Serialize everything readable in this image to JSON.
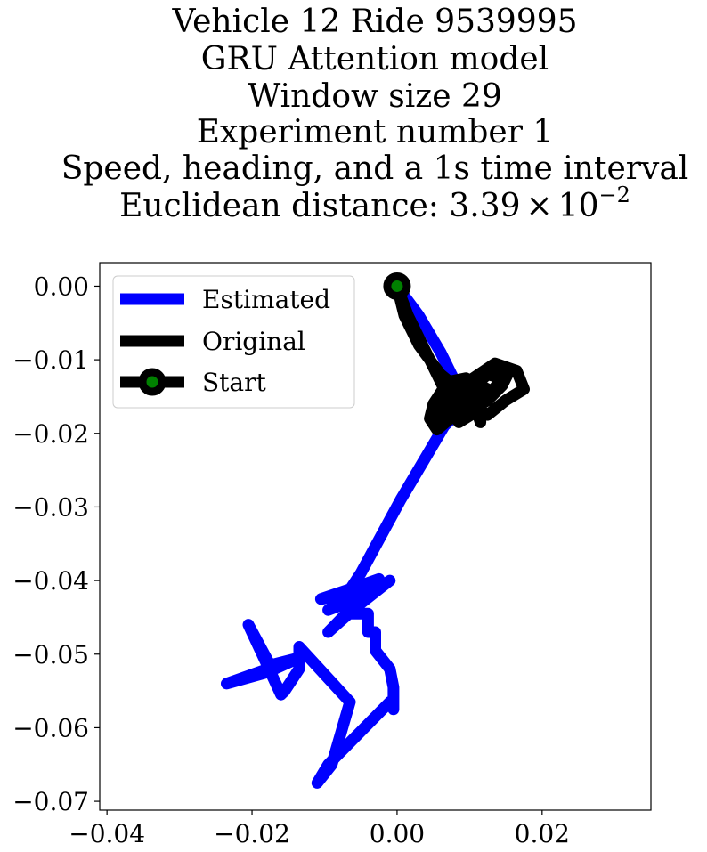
{
  "chart_data": {
    "type": "line",
    "title_lines": [
      "Vehicle 12 Ride 9539995",
      "GRU Attention model",
      "Window size 29",
      "Experiment number 1",
      "Speed, heading, and a 1s time interval"
    ],
    "title_distance": {
      "prefix": "Euclidean distance: ",
      "mantissa": "3.39",
      "times": "×",
      "base": "10",
      "exponent": "−2"
    },
    "xlim": [
      -0.041,
      0.035
    ],
    "ylim": [
      -0.0712,
      0.0032
    ],
    "x_ticks": [
      {
        "value": -0.04,
        "label": "−0.04"
      },
      {
        "value": -0.02,
        "label": "−0.02"
      },
      {
        "value": 0.0,
        "label": "0.00"
      },
      {
        "value": 0.02,
        "label": "0.02"
      }
    ],
    "y_ticks": [
      {
        "value": 0.0,
        "label": "0.00"
      },
      {
        "value": -0.01,
        "label": "−0.01"
      },
      {
        "value": -0.02,
        "label": "−0.02"
      },
      {
        "value": -0.03,
        "label": "−0.03"
      },
      {
        "value": -0.04,
        "label": "−0.04"
      },
      {
        "value": -0.05,
        "label": "−0.05"
      },
      {
        "value": -0.06,
        "label": "−0.06"
      },
      {
        "value": -0.07,
        "label": "−0.07"
      }
    ],
    "grid": false,
    "legend_position": "top-left",
    "series": [
      {
        "name": "Estimated",
        "color": "#0000ff",
        "points": [
          [
            0.0,
            0.0
          ],
          [
            0.003,
            -0.004
          ],
          [
            0.006,
            -0.009
          ],
          [
            0.008,
            -0.013
          ],
          [
            0.0095,
            -0.016
          ],
          [
            0.0065,
            -0.019
          ],
          [
            0.0005,
            -0.029
          ],
          [
            -0.005,
            -0.039
          ],
          [
            -0.007,
            -0.042
          ],
          [
            -0.0105,
            -0.0425
          ],
          [
            -0.006,
            -0.041
          ],
          [
            -0.0025,
            -0.0398
          ],
          [
            -0.0095,
            -0.044
          ],
          [
            -0.004,
            -0.042
          ],
          [
            -0.001,
            -0.04
          ],
          [
            -0.0055,
            -0.0435
          ],
          [
            -0.0095,
            -0.047
          ],
          [
            -0.007,
            -0.0445
          ],
          [
            -0.004,
            -0.0445
          ],
          [
            -0.004,
            -0.047
          ],
          [
            -0.003,
            -0.047
          ],
          [
            -0.003,
            -0.0495
          ],
          [
            -0.001,
            -0.052
          ],
          [
            -0.0005,
            -0.0545
          ],
          [
            -0.0005,
            -0.0575
          ],
          [
            -0.001,
            -0.0565
          ],
          [
            -0.0095,
            -0.065
          ],
          [
            -0.011,
            -0.0675
          ],
          [
            -0.009,
            -0.065
          ],
          [
            -0.0065,
            -0.0565
          ],
          [
            -0.0135,
            -0.049
          ],
          [
            -0.0135,
            -0.052
          ],
          [
            -0.0155,
            -0.055
          ],
          [
            -0.016,
            -0.0555
          ],
          [
            -0.0205,
            -0.046
          ],
          [
            -0.0175,
            -0.0515
          ],
          [
            -0.0135,
            -0.0505
          ],
          [
            -0.0235,
            -0.054
          ],
          [
            -0.018,
            -0.0525
          ],
          [
            -0.0135,
            -0.0505
          ]
        ]
      },
      {
        "name": "Original",
        "color": "#000000",
        "points": [
          [
            0.0,
            0.0
          ],
          [
            0.001,
            -0.004
          ],
          [
            0.003,
            -0.008
          ],
          [
            0.006,
            -0.012
          ],
          [
            0.0085,
            -0.014
          ],
          [
            0.01,
            -0.016
          ],
          [
            0.0125,
            -0.0175
          ],
          [
            0.015,
            -0.0155
          ],
          [
            0.0175,
            -0.014
          ],
          [
            0.0165,
            -0.0115
          ],
          [
            0.0135,
            -0.0105
          ],
          [
            0.0105,
            -0.0125
          ],
          [
            0.0085,
            -0.0145
          ],
          [
            0.0065,
            -0.0165
          ],
          [
            0.0055,
            -0.0185
          ],
          [
            0.009,
            -0.0175
          ],
          [
            0.0125,
            -0.0155
          ],
          [
            0.0145,
            -0.0135
          ],
          [
            0.0155,
            -0.0115
          ],
          [
            0.0125,
            -0.0115
          ],
          [
            0.0095,
            -0.0135
          ],
          [
            0.0065,
            -0.016
          ],
          [
            0.006,
            -0.0175
          ],
          [
            0.0095,
            -0.0165
          ],
          [
            0.0125,
            -0.015
          ],
          [
            0.0145,
            -0.0125
          ],
          [
            0.0125,
            -0.012
          ],
          [
            0.0095,
            -0.0145
          ],
          [
            0.007,
            -0.0165
          ],
          [
            0.0085,
            -0.0185
          ],
          [
            0.011,
            -0.017
          ],
          [
            0.0115,
            -0.0185
          ],
          [
            0.0115,
            -0.016
          ],
          [
            0.0135,
            -0.0145
          ],
          [
            0.0095,
            -0.0125
          ],
          [
            0.007,
            -0.013
          ],
          [
            0.005,
            -0.016
          ],
          [
            0.0045,
            -0.018
          ],
          [
            0.0055,
            -0.0195
          ],
          [
            0.0085,
            -0.017
          ],
          [
            0.0115,
            -0.0145
          ],
          [
            0.0095,
            -0.0135
          ],
          [
            0.0065,
            -0.0155
          ],
          [
            0.005,
            -0.0165
          ],
          [
            0.0065,
            -0.014
          ],
          [
            0.004,
            -0.009
          ],
          [
            0.0015,
            -0.004
          ],
          [
            0.0,
            0.0
          ]
        ]
      }
    ],
    "start": {
      "name": "Start",
      "x": 0.0,
      "y": 0.0,
      "marker_fill": "#008000",
      "marker_edge": "#000000"
    }
  }
}
